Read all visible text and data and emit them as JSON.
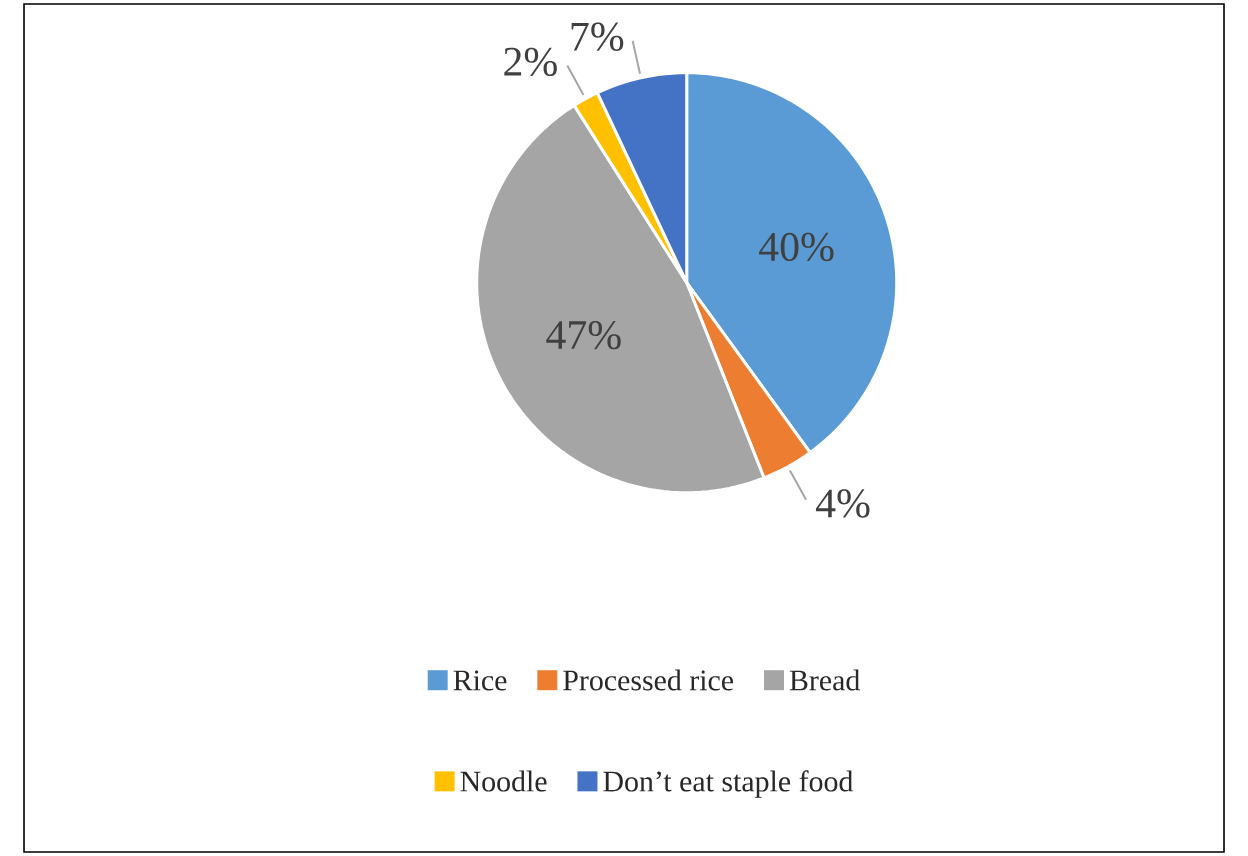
{
  "chart_data": {
    "type": "pie",
    "categories": [
      "Rice",
      "Processed rice",
      "Bread",
      "Noodle",
      "Don’t eat staple food"
    ],
    "values": [
      40,
      4,
      47,
      2,
      7
    ],
    "colors": [
      "#5b9bd5",
      "#ed7d31",
      "#a5a5a5",
      "#ffc000",
      "#4472c4"
    ],
    "value_labels": [
      "40%",
      "4%",
      "47%",
      "2%",
      "7%"
    ],
    "legend": "bottom"
  }
}
